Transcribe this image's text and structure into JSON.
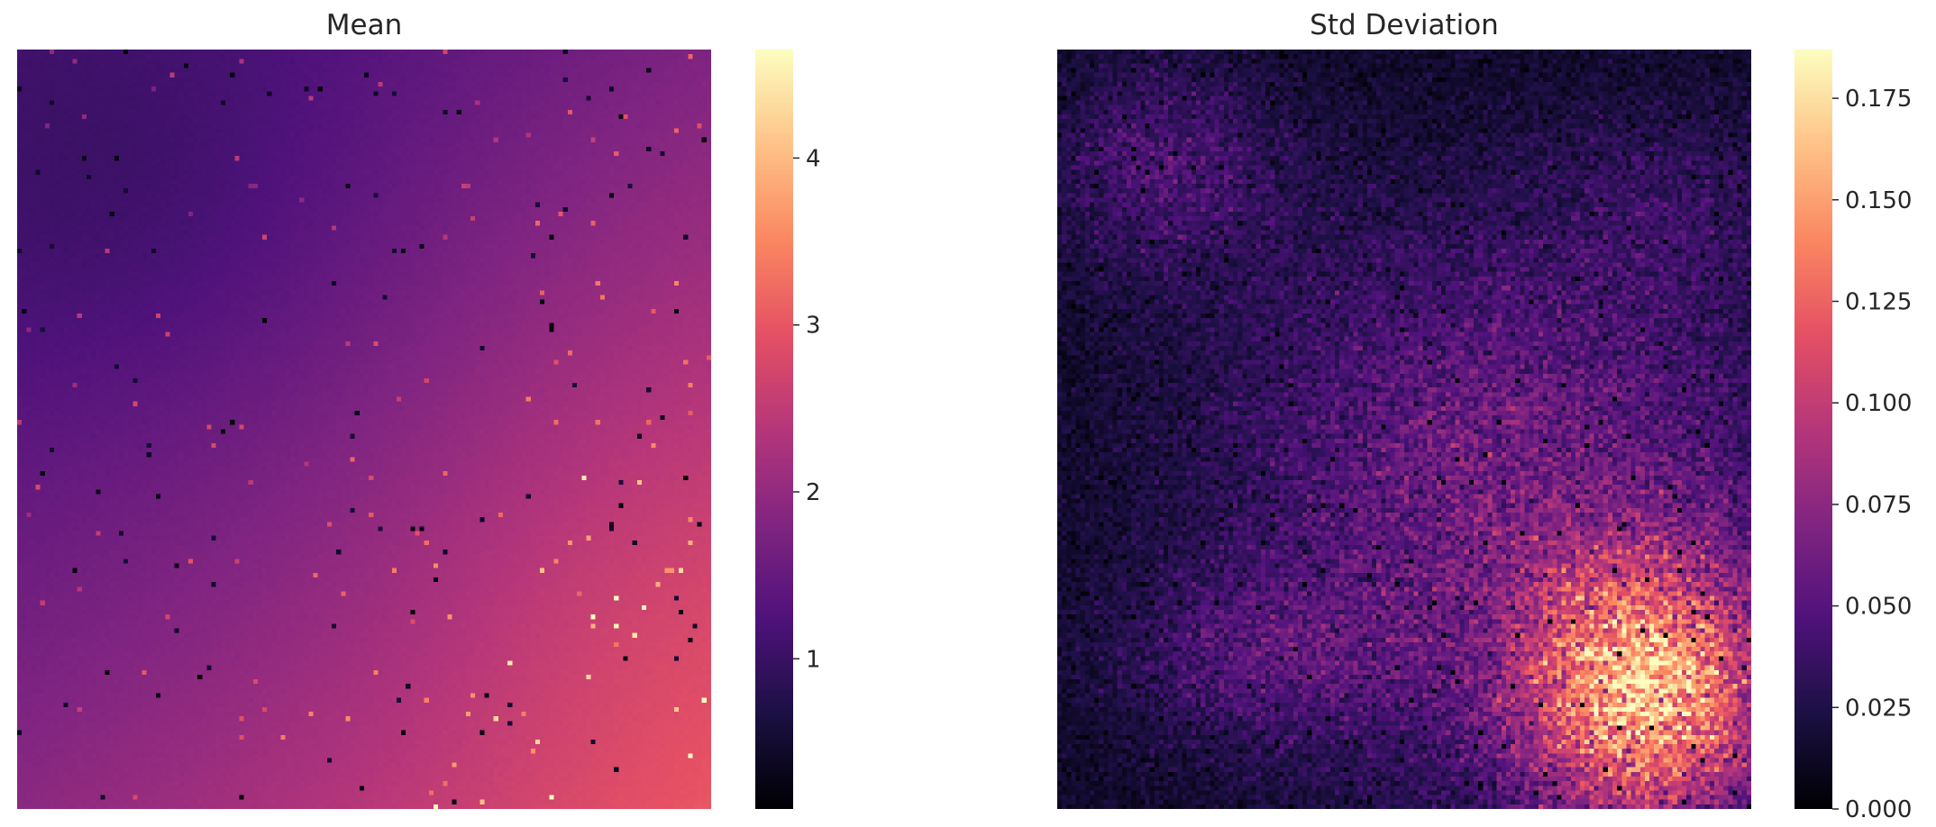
{
  "chart_data": [
    {
      "type": "heatmap",
      "title": "Mean",
      "colormap": "magma",
      "colorbar": {
        "range": [
          0.1,
          4.65
        ],
        "ticks": [
          1,
          2,
          3,
          4
        ],
        "tick_labels": [
          "1",
          "2",
          "3",
          "4"
        ]
      },
      "grid_size": [
        150,
        164
      ],
      "field": {
        "description_values": "smooth field: lowest (~1.2) upper-left, highest (~2.9) lower-right",
        "min": 1.15,
        "max": 2.95
      },
      "outliers": {
        "count": 260,
        "low_range": [
          0.1,
          0.5
        ],
        "high_range": [
          3.5,
          4.6
        ]
      }
    },
    {
      "type": "heatmap",
      "title": "Std Deviation",
      "colormap": "magma",
      "colorbar": {
        "range": [
          0.0,
          0.187
        ],
        "ticks": [
          0.0,
          0.025,
          0.05,
          0.075,
          0.1,
          0.125,
          0.15,
          0.175
        ],
        "tick_labels": [
          "0.000",
          "0.025",
          "0.050",
          "0.075",
          "0.100",
          "0.125",
          "0.150",
          "0.175"
        ]
      },
      "grid_size": [
        150,
        164
      ],
      "field": {
        "min": 0.005,
        "max": 0.165,
        "peak": "lower-right"
      },
      "outliers": {
        "count": 260,
        "low_range": [
          0.0,
          0.004
        ]
      }
    }
  ],
  "colors": {
    "magma_stops": [
      "#000004",
      "#1c1044",
      "#4f127b",
      "#812581",
      "#b5367a",
      "#e55064",
      "#fb8761",
      "#fec287",
      "#fcfdbf"
    ]
  }
}
